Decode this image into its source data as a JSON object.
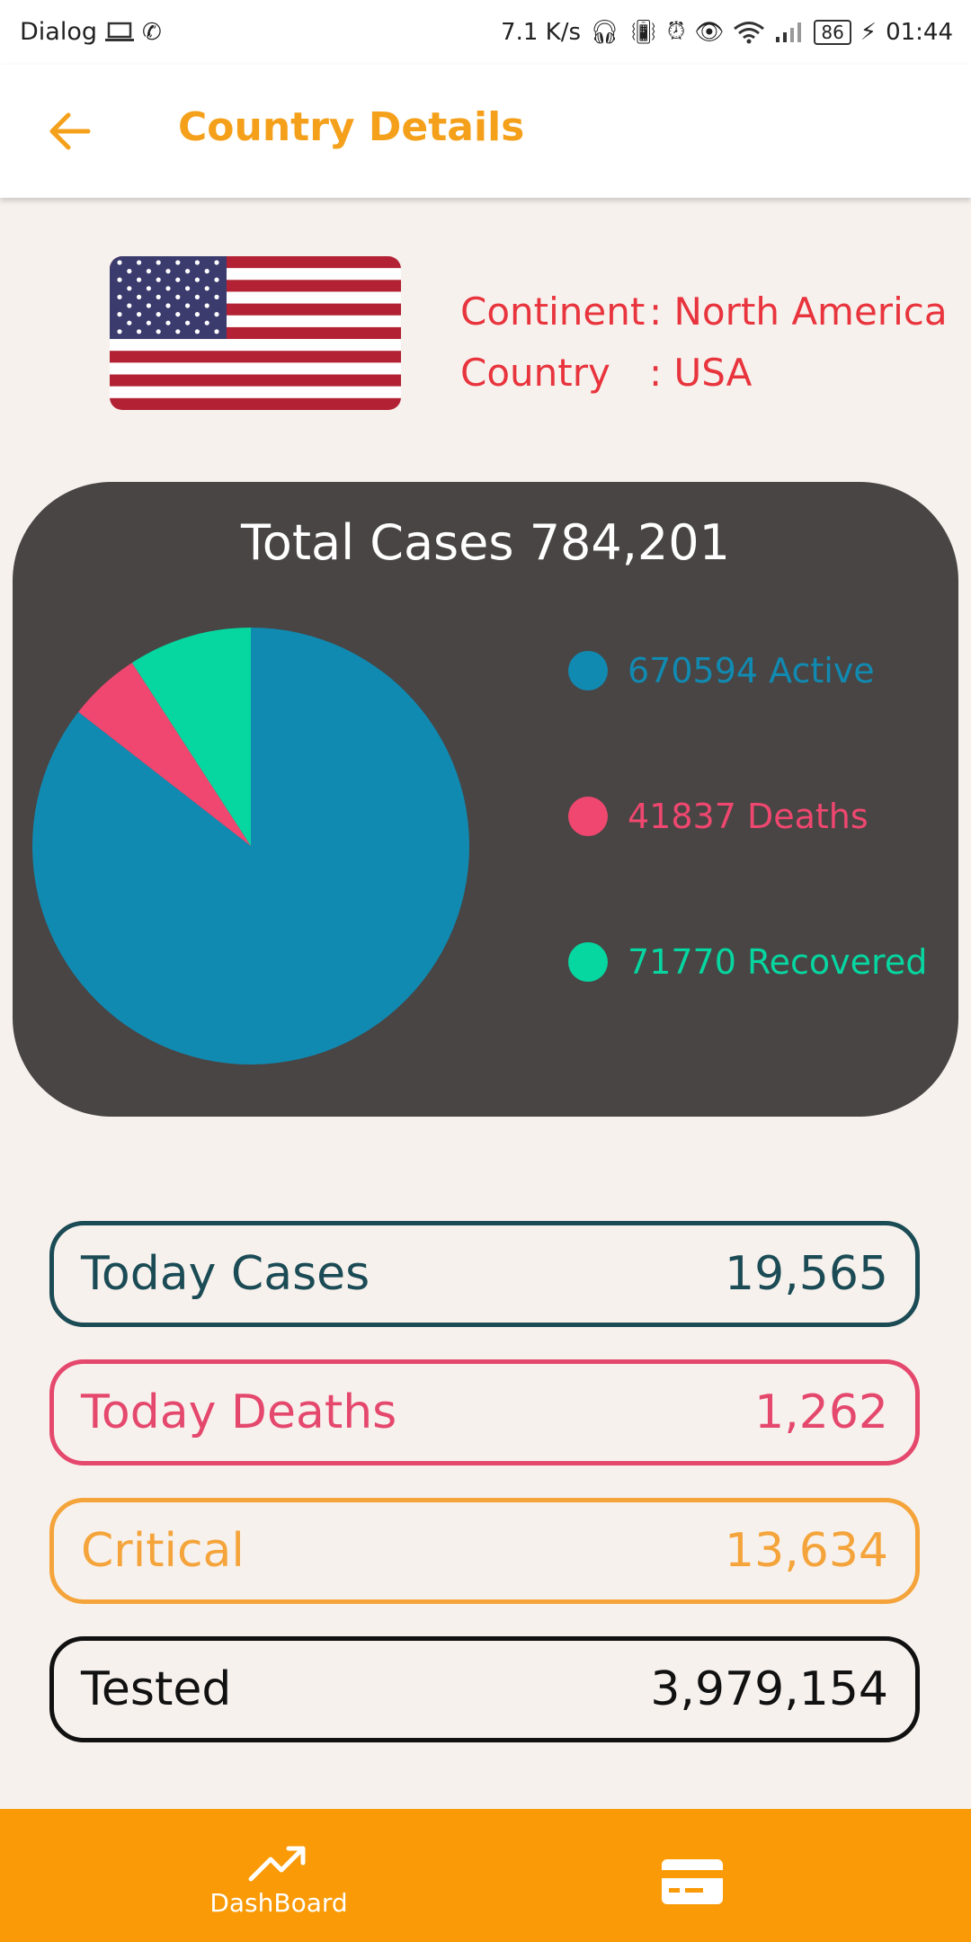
{
  "status_bar": {
    "carrier": "Dialog",
    "speed": "7.1 K/s",
    "battery": "86",
    "time": "01:44"
  },
  "app_bar": {
    "title": "Country Details"
  },
  "country": {
    "continent_label": "Continent",
    "continent_value": ": North America",
    "country_label": "Country",
    "country_value": ": USA"
  },
  "total_card": {
    "title": "Total Cases 784,201"
  },
  "chart_data": {
    "type": "pie",
    "slices": [
      {
        "value": 670594,
        "label": "670594 Active",
        "color": "#118ab2"
      },
      {
        "value": 41837,
        "label": "41837 Deaths",
        "color": "#ef476f"
      },
      {
        "value": 71770,
        "label": "71770 Recovered",
        "color": "#06d6a0"
      }
    ]
  },
  "stats": [
    {
      "label": "Today Cases",
      "value": "19,565",
      "color": "#1b4b55"
    },
    {
      "label": "Today Deaths",
      "value": "1,262",
      "color": "#e5486d"
    },
    {
      "label": "Critical",
      "value": "13,634",
      "color": "#f4a43a"
    },
    {
      "label": "Tested",
      "value": "3,979,154",
      "color": "#111111"
    }
  ],
  "bottom_nav": {
    "dashboard_label": "DashBoard"
  },
  "colors": {
    "accent": "#f5a01a",
    "nav_bg": "#fa9a06",
    "card_bg": "#484544"
  }
}
